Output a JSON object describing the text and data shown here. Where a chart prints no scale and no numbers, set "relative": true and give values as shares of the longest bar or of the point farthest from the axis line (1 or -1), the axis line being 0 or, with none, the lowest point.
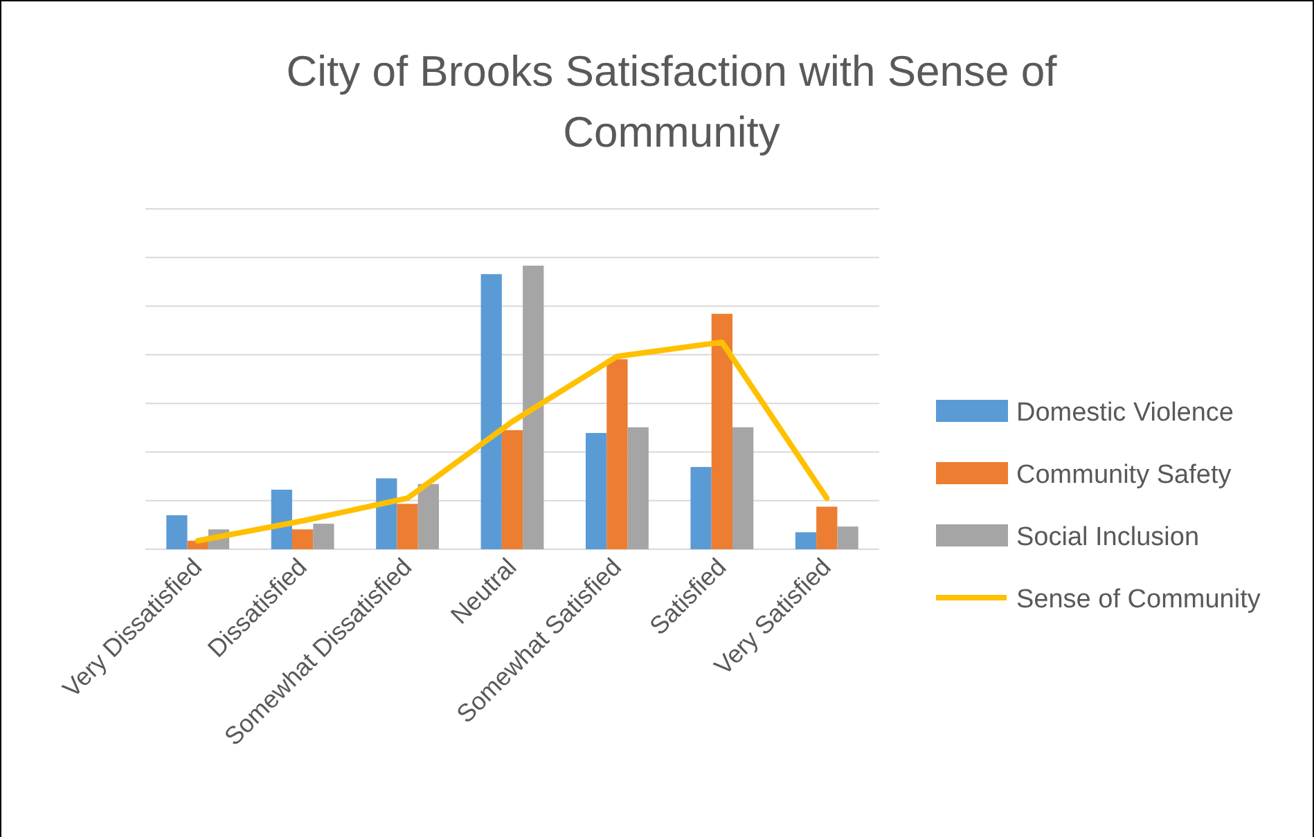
{
  "chart_data": {
    "type": "bar",
    "title": "City of Brooks Satisfaction with Sense of Community",
    "relative": true,
    "grid": "y",
    "legend": "right",
    "categories": [
      "Very Dissatisfied",
      "Dissatisfied",
      "Somewhat Dissatisfied",
      "Neutral",
      "Somewhat Satisfied",
      "Satisfied",
      "Very Satisfied"
    ],
    "series": [
      {
        "name": "Domestic Violence",
        "color": "#5b9bd5",
        "values": [
          0.12,
          0.21,
          0.25,
          0.97,
          0.41,
          0.29,
          0.06
        ]
      },
      {
        "name": "Community Safety",
        "color": "#ed7d31",
        "values": [
          0.03,
          0.07,
          0.16,
          0.42,
          0.67,
          0.83,
          0.15
        ]
      },
      {
        "name": "Social Inclusion",
        "color": "#a5a5a5",
        "values": [
          0.07,
          0.09,
          0.23,
          1,
          0.43,
          0.43,
          0.08
        ]
      },
      {
        "name": "Sense of Community",
        "type": "line",
        "color": "#ffc000",
        "line_style": "solid",
        "marker": "none",
        "values": [
          0.03,
          0.1,
          0.18,
          0.45,
          0.68,
          0.73,
          0.18
        ]
      }
    ]
  }
}
